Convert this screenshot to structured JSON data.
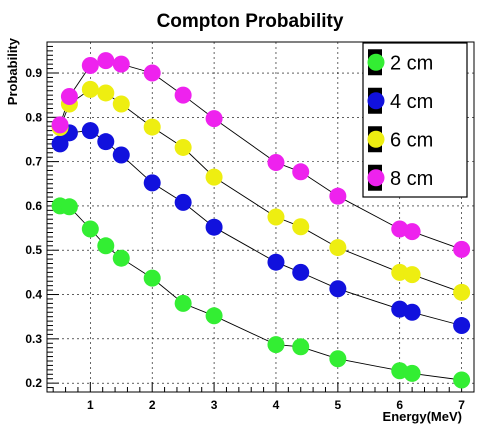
{
  "chart_data": {
    "type": "scatter",
    "title": "Compton Probability",
    "xlabel": "Energy(MeV)",
    "ylabel": "Probability",
    "xlim": [
      0.3,
      7.2
    ],
    "ylim": [
      0.18,
      0.97
    ],
    "grid": true,
    "legend_position": "top-right",
    "x_ticks": [
      1,
      2,
      3,
      4,
      5,
      6,
      7
    ],
    "y_ticks": [
      0.2,
      0.3,
      0.4,
      0.5,
      0.6,
      0.7,
      0.8,
      0.9
    ],
    "x_tick_labels": [
      "1",
      "2",
      "3",
      "4",
      "5",
      "6",
      "7"
    ],
    "y_tick_labels": [
      "0.2",
      "0.3",
      "0.4",
      "0.5",
      "0.6",
      "0.7",
      "0.8",
      "0.9"
    ],
    "x": [
      0.511,
      0.662,
      1.0,
      1.25,
      1.5,
      2.0,
      2.5,
      3.0,
      4.0,
      4.4,
      5.0,
      6.0,
      6.2,
      7.0
    ],
    "series": [
      {
        "name": "2 cm",
        "color": "#33ee33",
        "values": [
          0.6,
          0.598,
          0.548,
          0.51,
          0.482,
          0.437,
          0.38,
          0.352,
          0.287,
          0.282,
          0.255,
          0.228,
          0.222,
          0.207
        ]
      },
      {
        "name": "4 cm",
        "color": "#1111dd",
        "values": [
          0.74,
          0.765,
          0.77,
          0.745,
          0.715,
          0.652,
          0.608,
          0.552,
          0.473,
          0.45,
          0.413,
          0.367,
          0.36,
          0.33
        ]
      },
      {
        "name": "6 cm",
        "color": "#eeee11",
        "values": [
          0.777,
          0.83,
          0.863,
          0.855,
          0.83,
          0.778,
          0.732,
          0.665,
          0.575,
          0.553,
          0.506,
          0.45,
          0.445,
          0.405
        ]
      },
      {
        "name": "8 cm",
        "color": "#ee22ee",
        "values": [
          0.783,
          0.847,
          0.917,
          0.928,
          0.92,
          0.9,
          0.85,
          0.797,
          0.698,
          0.677,
          0.622,
          0.548,
          0.542,
          0.502
        ]
      }
    ]
  }
}
